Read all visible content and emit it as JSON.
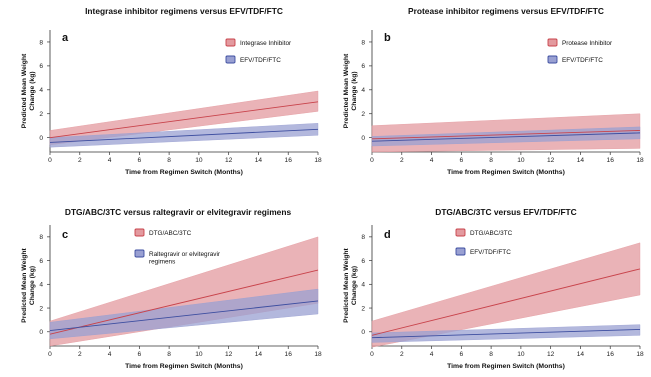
{
  "chart_data": [
    {
      "type": "line",
      "label": "a",
      "title": "Integrase inhibitor regimens versus EFV/TDF/FTC",
      "xlabel": "Time from Regimen Switch (Months)",
      "ylabel": "Predicted Mean Weight Change (kg)",
      "xlim": [
        0,
        18
      ],
      "ylim": [
        -1.2,
        9
      ],
      "xticks": [
        0,
        2,
        4,
        6,
        8,
        10,
        12,
        14,
        16,
        18
      ],
      "yticks": [
        0,
        2,
        4,
        6,
        8
      ],
      "legend_position": "top-right",
      "series": [
        {
          "name": "Integrase Inhibitor",
          "color": "#c8434b",
          "band_color": "#e39a9f",
          "x": [
            0,
            18
          ],
          "y": [
            0.0,
            3.0
          ],
          "lower": [
            -0.6,
            2.2
          ],
          "upper": [
            0.6,
            3.9
          ]
        },
        {
          "name": "EFV/TDF/FTC",
          "color": "#3d4ea0",
          "band_color": "#99a0d2",
          "x": [
            0,
            18
          ],
          "y": [
            -0.4,
            0.7
          ],
          "lower": [
            -0.8,
            0.2
          ],
          "upper": [
            0.0,
            1.2
          ]
        }
      ]
    },
    {
      "type": "line",
      "label": "b",
      "title": "Protease inhibitor regimens versus EFV/TDF/FTC",
      "xlabel": "Time from Regimen Switch (Months)",
      "ylabel": "Predicted Mean Weight Change (kg)",
      "xlim": [
        0,
        18
      ],
      "ylim": [
        -1.2,
        9
      ],
      "xticks": [
        0,
        2,
        4,
        6,
        8,
        10,
        12,
        14,
        16,
        18
      ],
      "yticks": [
        0,
        2,
        4,
        6,
        8
      ],
      "legend_position": "top-right",
      "series": [
        {
          "name": "Protease Inhibitor",
          "color": "#c8434b",
          "band_color": "#e39a9f",
          "x": [
            0,
            18
          ],
          "y": [
            -0.1,
            0.6
          ],
          "lower": [
            -1.2,
            -0.9
          ],
          "upper": [
            1.0,
            2.0
          ]
        },
        {
          "name": "EFV/TDF/FTC",
          "color": "#3d4ea0",
          "band_color": "#99a0d2",
          "x": [
            0,
            18
          ],
          "y": [
            -0.3,
            0.4
          ],
          "lower": [
            -0.7,
            -0.1
          ],
          "upper": [
            0.1,
            0.9
          ]
        }
      ]
    },
    {
      "type": "line",
      "label": "c",
      "title": "DTG/ABC/3TC versus raltegravir or elvitegravir regimens",
      "xlabel": "Time from Regimen Switch (Months)",
      "ylabel": "Predicted Mean Weight Change (kg)",
      "xlim": [
        0,
        18
      ],
      "ylim": [
        -1.2,
        9
      ],
      "xticks": [
        0,
        2,
        4,
        6,
        8,
        10,
        12,
        14,
        16,
        18
      ],
      "yticks": [
        0,
        2,
        4,
        6,
        8
      ],
      "legend_position": "top-center",
      "series": [
        {
          "name": "DTG/ABC/3TC",
          "color": "#c8434b",
          "band_color": "#e39a9f",
          "x": [
            0,
            18
          ],
          "y": [
            -0.2,
            5.2
          ],
          "lower": [
            -1.2,
            2.4
          ],
          "upper": [
            0.9,
            8.0
          ]
        },
        {
          "name": "Raltegravir or elvitegravir regimens",
          "color": "#3d4ea0",
          "band_color": "#99a0d2",
          "x": [
            0,
            18
          ],
          "y": [
            0.1,
            2.6
          ],
          "lower": [
            -0.6,
            1.5
          ],
          "upper": [
            0.8,
            3.6
          ]
        }
      ]
    },
    {
      "type": "line",
      "label": "d",
      "title": "DTG/ABC/3TC versus EFV/TDF/FTC",
      "xlabel": "Time from Regimen Switch (Months)",
      "ylabel": "Predicted Mean Weight Change (kg)",
      "xlim": [
        0,
        18
      ],
      "ylim": [
        -1.2,
        9
      ],
      "xticks": [
        0,
        2,
        4,
        6,
        8,
        10,
        12,
        14,
        16,
        18
      ],
      "yticks": [
        0,
        2,
        4,
        6,
        8
      ],
      "legend_position": "top-center",
      "series": [
        {
          "name": "DTG/ABC/3TC",
          "color": "#c8434b",
          "band_color": "#e39a9f",
          "x": [
            0,
            18
          ],
          "y": [
            -0.3,
            5.3
          ],
          "lower": [
            -1.3,
            3.1
          ],
          "upper": [
            0.9,
            7.5
          ]
        },
        {
          "name": "EFV/TDF/FTC",
          "color": "#3d4ea0",
          "band_color": "#99a0d2",
          "x": [
            0,
            18
          ],
          "y": [
            -0.5,
            0.2
          ],
          "lower": [
            -0.9,
            -0.3
          ],
          "upper": [
            -0.1,
            0.6
          ]
        }
      ]
    }
  ]
}
